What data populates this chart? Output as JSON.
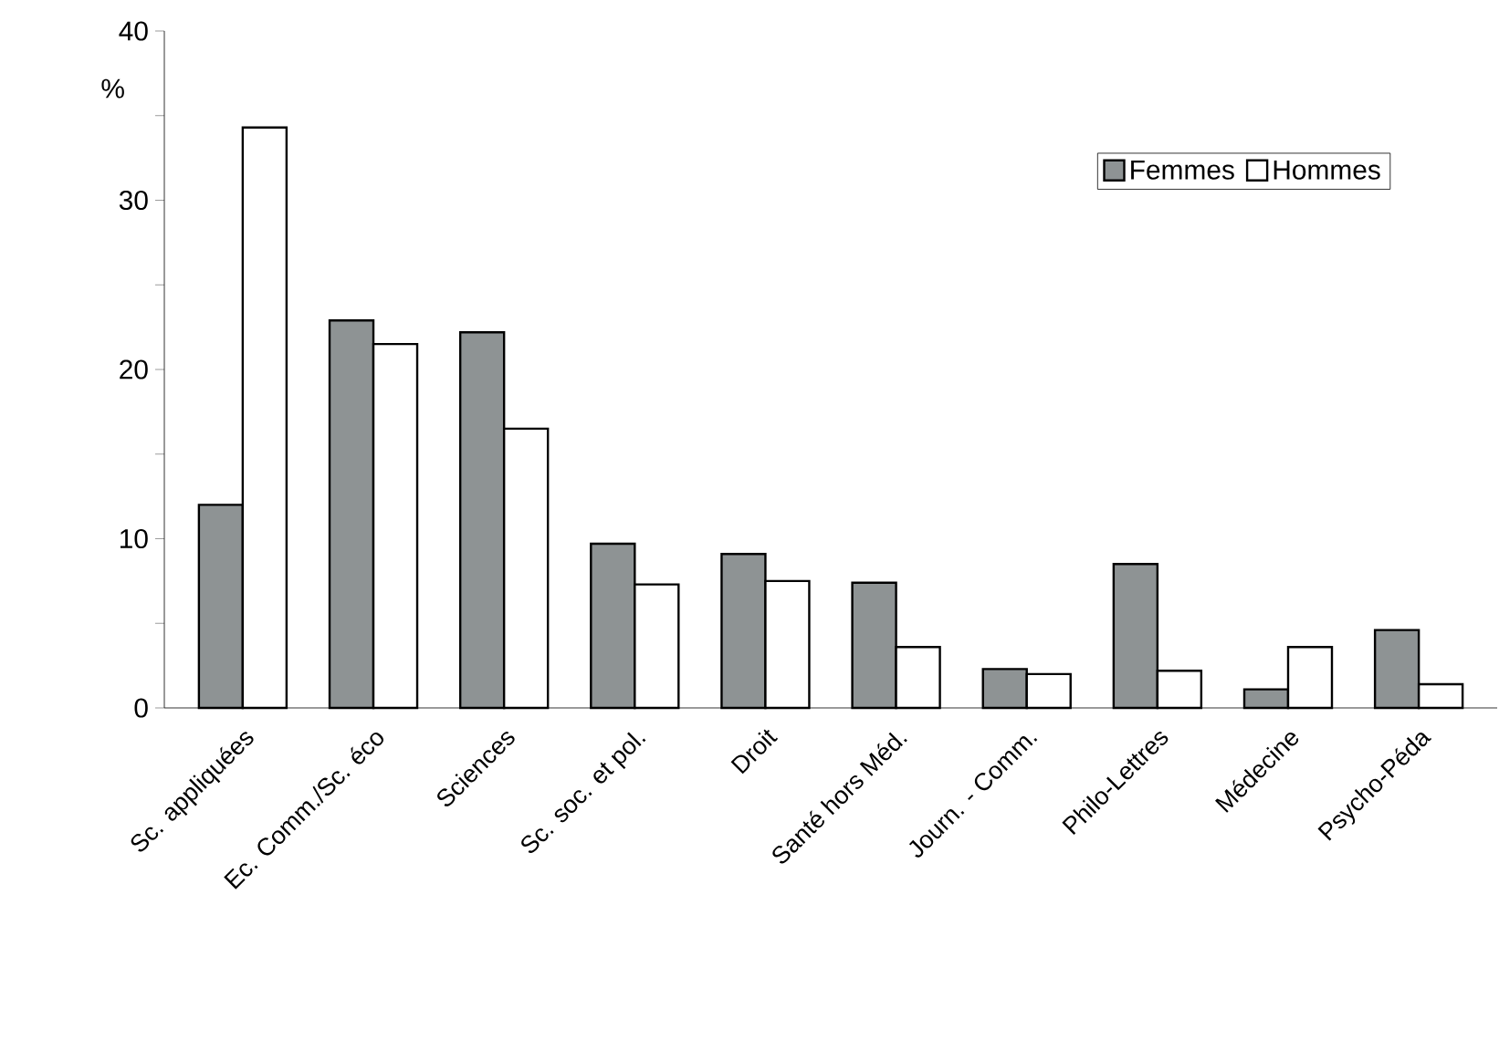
{
  "chart_data": {
    "type": "bar",
    "ylabel": "%",
    "categories": [
      "Sc. appliquées",
      "Ec. Comm./Sc. éco",
      "Sciences",
      "Sc. soc. et pol.",
      "Droit",
      "Santé hors Méd.",
      "Journ. - Comm.",
      "Philo-Lettres",
      "Médecine",
      "Psycho-Péda"
    ],
    "series": [
      {
        "name": "Femmes",
        "color": "#8e9394",
        "values": [
          12.0,
          22.9,
          22.2,
          9.7,
          9.1,
          7.4,
          2.3,
          8.5,
          1.1,
          4.6
        ]
      },
      {
        "name": "Hommes",
        "color": "#ffffff",
        "values": [
          34.3,
          21.5,
          16.5,
          7.3,
          7.5,
          3.6,
          2.0,
          2.2,
          3.6,
          1.4
        ]
      }
    ],
    "ylim": [
      0,
      40
    ],
    "yticks": [
      0,
      {
        "value": 5,
        "label": null
      },
      10,
      {
        "value": 15,
        "label": null
      },
      20,
      {
        "value": 25,
        "label": null
      },
      30,
      {
        "value": 35,
        "label": null
      },
      40
    ],
    "grid": false,
    "legend": "top right"
  }
}
